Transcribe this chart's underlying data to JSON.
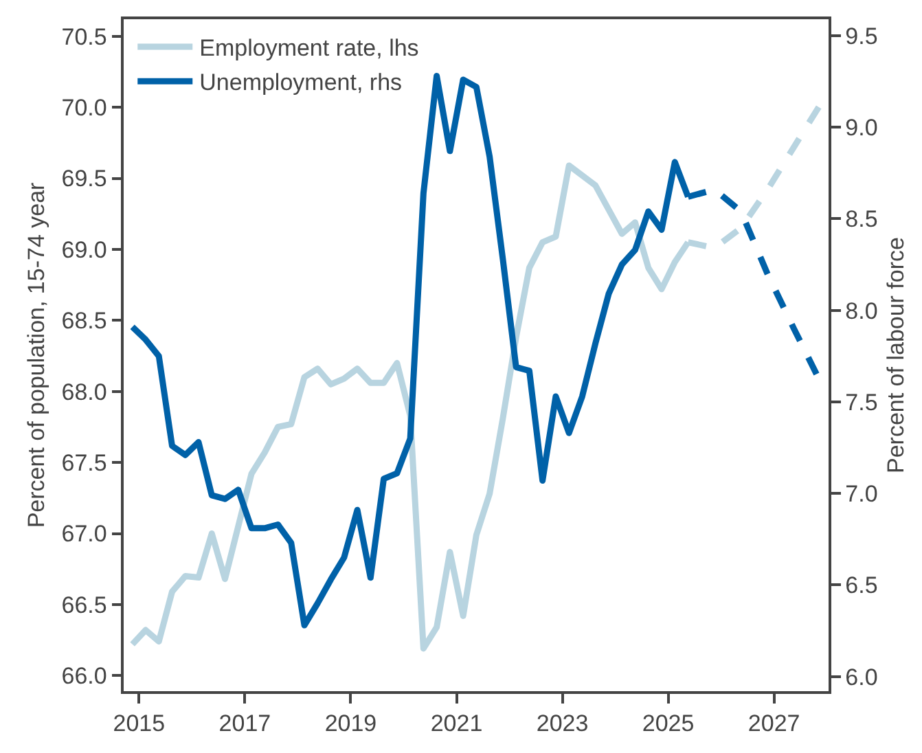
{
  "chart_data": {
    "type": "line",
    "ylabel": "Percent of population, 15-74 year",
    "y2label": "Percent of labour force",
    "xlim": [
      2014.71,
      2028.03
    ],
    "xticks": [
      2015,
      2017,
      2019,
      2021,
      2023,
      2025,
      2027
    ],
    "ylim": [
      65.89,
      70.62
    ],
    "yticks": [
      {
        "value": 66,
        "label": "66.0"
      },
      66.5,
      {
        "value": 67,
        "label": "67.0"
      },
      67.5,
      {
        "value": 68,
        "label": "68.0"
      },
      68.5,
      {
        "value": 69,
        "label": "69.0"
      },
      69.5,
      {
        "value": 70,
        "label": "70.0"
      },
      70.5
    ],
    "y2lim": [
      5.92,
      9.59
    ],
    "y2ticks": [
      {
        "value": 6,
        "label": "6.0"
      },
      6.5,
      {
        "value": 7,
        "label": "7.0"
      },
      7.5,
      {
        "value": 8,
        "label": "8.0"
      },
      8.5,
      {
        "value": 9,
        "label": "9.0"
      },
      9.5
    ],
    "grid": false,
    "legend": "top left",
    "marker": "none",
    "series": [
      {
        "name": "Employment rate, lhs",
        "color": "#b8d4e0",
        "line_style": "solid",
        "x": [
          2014.875,
          2015.125,
          2015.375,
          2015.625,
          2015.875,
          2016.125,
          2016.375,
          2016.625,
          2016.875,
          2017.125,
          2017.375,
          2017.625,
          2017.875,
          2018.125,
          2018.375,
          2018.625,
          2018.875,
          2019.125,
          2019.375,
          2019.625,
          2019.875,
          2020.125,
          2020.375,
          2020.625,
          2020.875,
          2021.125,
          2021.375,
          2021.625,
          2021.875,
          2022.125,
          2022.375,
          2022.625,
          2022.875,
          2023.125,
          2023.375,
          2023.625,
          2023.875,
          2024.125,
          2024.375,
          2024.625,
          2024.875,
          2025.125,
          2025.375
        ],
        "values": [
          66.22,
          66.32,
          66.24,
          66.59,
          66.7,
          66.69,
          67.0,
          66.68,
          67.05,
          67.42,
          67.57,
          67.75,
          67.77,
          68.1,
          68.16,
          68.05,
          68.09,
          68.16,
          68.06,
          68.06,
          68.2,
          67.83,
          66.19,
          66.34,
          66.87,
          66.42,
          66.99,
          67.28,
          67.81,
          68.38,
          68.87,
          69.05,
          69.09,
          69.59,
          69.52,
          69.45,
          69.28,
          69.11,
          69.19,
          68.87,
          68.72,
          68.91,
          69.05
        ]
      },
      {
        "name": "Unemployment, rhs",
        "color": "#0061a8",
        "line_style": "solid",
        "axis": "y2",
        "x": [
          2014.875,
          2015.125,
          2015.375,
          2015.625,
          2015.875,
          2016.125,
          2016.375,
          2016.625,
          2016.875,
          2017.125,
          2017.375,
          2017.625,
          2017.875,
          2018.125,
          2018.375,
          2018.625,
          2018.875,
          2019.125,
          2019.375,
          2019.625,
          2019.875,
          2020.125,
          2020.375,
          2020.625,
          2020.875,
          2021.125,
          2021.375,
          2021.625,
          2021.875,
          2022.125,
          2022.375,
          2022.625,
          2022.875,
          2023.125,
          2023.375,
          2023.625,
          2023.875,
          2024.125,
          2024.375,
          2024.625,
          2024.875,
          2025.125,
          2025.375
        ],
        "values": [
          7.91,
          7.84,
          7.75,
          7.26,
          7.21,
          7.28,
          6.99,
          6.97,
          7.02,
          6.81,
          6.81,
          6.83,
          6.73,
          6.28,
          6.4,
          6.53,
          6.65,
          6.91,
          6.54,
          7.08,
          7.11,
          7.3,
          8.64,
          9.28,
          8.87,
          9.26,
          9.22,
          8.84,
          8.28,
          7.69,
          7.67,
          7.07,
          7.53,
          7.33,
          7.53,
          7.82,
          8.09,
          8.25,
          8.33,
          8.54,
          8.44,
          8.81,
          8.62
        ]
      },
      {
        "color": "#b8d4e0",
        "line_style": "dashed",
        "x": [
          2025.375,
          2025.875,
          2026.375,
          2026.875,
          2027.375,
          2027.875
        ],
        "values": [
          69.05,
          69.01,
          69.15,
          69.42,
          69.72,
          70.02
        ]
      },
      {
        "color": "#0061a8",
        "line_style": "dashed",
        "axis": "y2",
        "x": [
          2025.375,
          2025.875,
          2026.375,
          2026.875,
          2027.375,
          2027.875
        ],
        "values": [
          8.62,
          8.66,
          8.54,
          8.2,
          7.9,
          7.61
        ]
      }
    ]
  }
}
